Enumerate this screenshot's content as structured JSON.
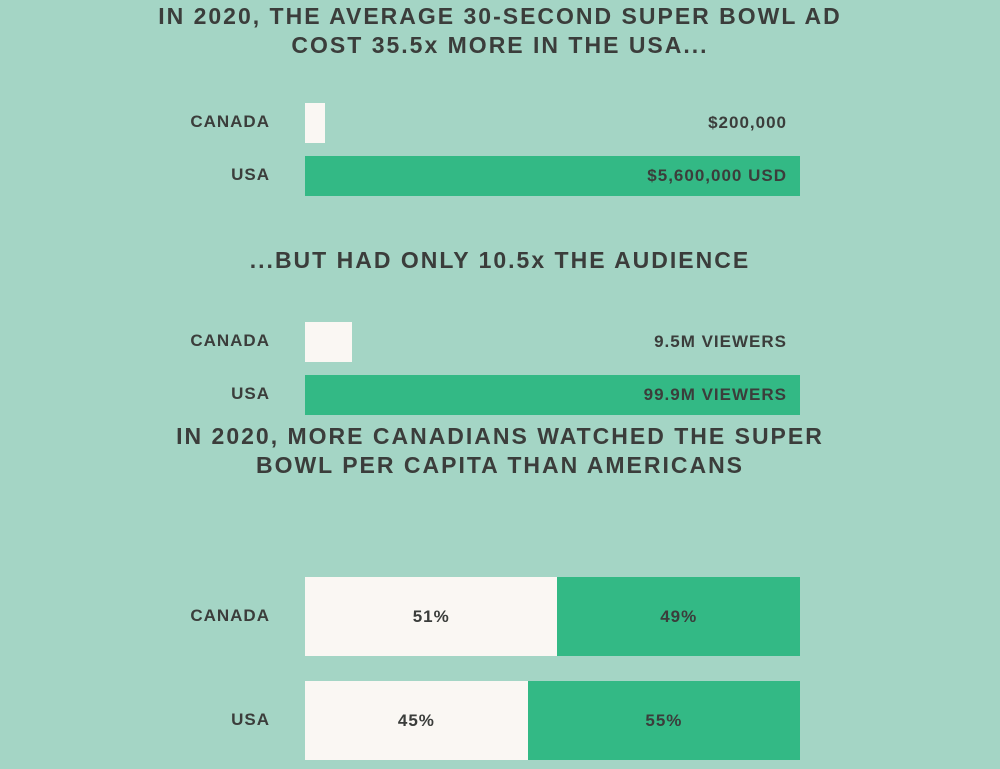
{
  "colors": {
    "background": "#a4d5c5",
    "light_bar": "#faf7f3",
    "green_bar": "#33b985",
    "text": "#3b3d3b"
  },
  "headings": {
    "cost": "IN 2020, THE AVERAGE 30-SECOND SUPER BOWL AD\nCOST 35.5x MORE IN THE USA...",
    "audience": "...BUT HAD ONLY 10.5x THE AUDIENCE",
    "per_capita": "IN 2020, MORE CANADIANS WATCHED THE SUPER\nBOWL PER CAPITA THAN AMERICANS"
  },
  "chart_data": [
    {
      "type": "bar",
      "orientation": "horizontal",
      "title": "IN 2020, THE AVERAGE 30-SECOND SUPER BOWL AD COST 35.5x MORE IN THE USA...",
      "categories": [
        "CANADA",
        "USA"
      ],
      "values": [
        200000,
        5600000
      ],
      "value_labels": [
        "$200,000",
        "$5,600,000 USD"
      ],
      "bar_colors": [
        "#faf7f3",
        "#33b985"
      ],
      "xlim": [
        0,
        5600000
      ]
    },
    {
      "type": "bar",
      "orientation": "horizontal",
      "title": "...BUT HAD ONLY 10.5x THE AUDIENCE",
      "categories": [
        "CANADA",
        "USA"
      ],
      "values": [
        9.5,
        99.9
      ],
      "value_labels": [
        "9.5M VIEWERS",
        "99.9M VIEWERS"
      ],
      "bar_colors": [
        "#faf7f3",
        "#33b985"
      ],
      "xlim": [
        0,
        99.9
      ]
    },
    {
      "type": "bar",
      "orientation": "horizontal",
      "stacked": true,
      "title": "IN 2020, MORE CANADIANS WATCHED THE SUPER BOWL PER CAPITA THAN AMERICANS",
      "categories": [
        "CANADA",
        "USA"
      ],
      "series": [
        {
          "values": [
            51,
            45
          ],
          "labels": [
            "51%",
            "45%"
          ],
          "color": "#faf7f3"
        },
        {
          "values": [
            49,
            55
          ],
          "labels": [
            "49%",
            "55%"
          ],
          "color": "#33b985"
        }
      ],
      "xlim": [
        0,
        100
      ]
    }
  ]
}
